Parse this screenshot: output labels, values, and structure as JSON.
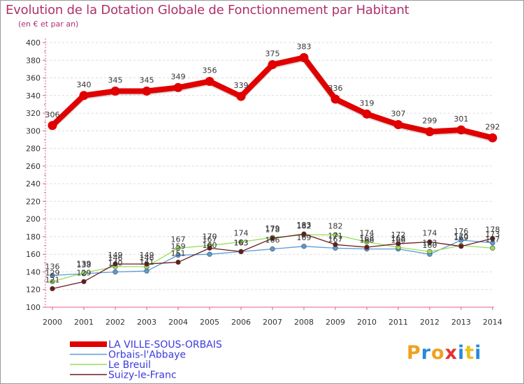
{
  "chart_data": {
    "type": "line",
    "title": "Evolution de la Dotation Globale de Fonctionnement par Habitant",
    "subtitle": "(en € et par an)",
    "xlabel": "",
    "ylabel": "",
    "x": [
      "2000",
      "2001",
      "2002",
      "2003",
      "2004",
      "2005",
      "2006",
      "2007",
      "2008",
      "2009",
      "2010",
      "2011",
      "2012",
      "2013",
      "2014"
    ],
    "ylim": [
      100,
      400
    ],
    "yticks": [
      100,
      120,
      140,
      160,
      180,
      200,
      220,
      240,
      260,
      280,
      300,
      320,
      340,
      360,
      380,
      400
    ],
    "grid": "horizontal",
    "legend_position": "bottom-left",
    "series": [
      {
        "name": "LA VILLE-SOUS-ORBAIS",
        "color": "#e00000",
        "values": [
          306,
          340,
          345,
          345,
          349,
          356,
          339,
          375,
          383,
          336,
          319,
          307,
          299,
          301,
          292
        ]
      },
      {
        "name": "Orbais-l'Abbaye",
        "color": "#5b9bd5",
        "values": [
          136,
          138,
          140,
          141,
          159,
          160,
          163,
          166,
          169,
          167,
          166,
          166,
          160,
          176,
          173
        ]
      },
      {
        "name": "Le Breuil",
        "color": "#99dd55",
        "values": [
          129,
          139,
          146,
          146,
          167,
          170,
          174,
          179,
          182,
          182,
          174,
          168,
          163,
          170,
          167
        ]
      },
      {
        "name": "Suizy-le-Franc",
        "color": "#6b1a1a",
        "values": [
          121,
          129,
          149,
          149,
          151,
          167,
          163,
          178,
          183,
          171,
          168,
          172,
          174,
          169,
          178
        ]
      }
    ]
  },
  "logo": {
    "letters": [
      "P",
      "r",
      "o",
      "x",
      "i",
      "t",
      "i"
    ],
    "colors": [
      "#f0a020",
      "#2a8ad8",
      "#f0a020",
      "#e83030",
      "#2a8ad8",
      "#e8c020",
      "#2a8ad8"
    ]
  }
}
